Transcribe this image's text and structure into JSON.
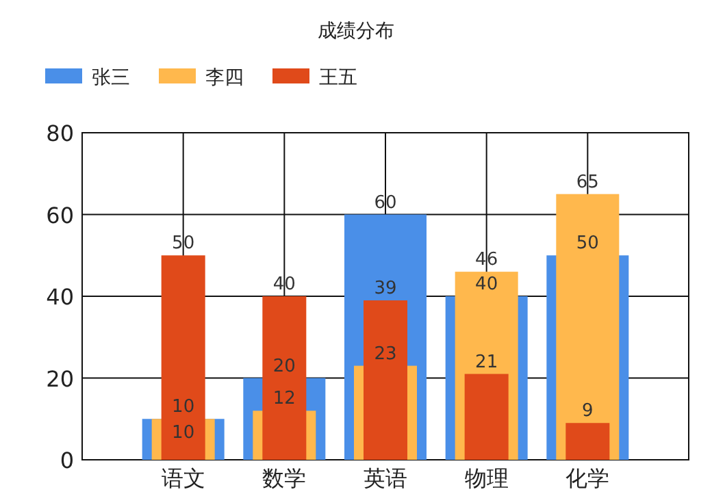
{
  "chart_data": {
    "type": "bar",
    "title": "成绩分布",
    "categories": [
      "语文",
      "数学",
      "英语",
      "物理",
      "化学"
    ],
    "series": [
      {
        "name": "张三",
        "color": "#4a8fe8",
        "values": [
          10,
          20,
          60,
          40,
          50
        ]
      },
      {
        "name": "李四",
        "color": "#ffb84d",
        "values": [
          10,
          12,
          23,
          46,
          65
        ]
      },
      {
        "name": "王五",
        "color": "#e04a1a",
        "values": [
          50,
          40,
          39,
          21,
          9
        ]
      }
    ],
    "ylim": [
      0,
      80
    ],
    "yticks": [
      0,
      20,
      40,
      60,
      80
    ],
    "grid": true,
    "legend": "top left",
    "data_labels": true
  }
}
